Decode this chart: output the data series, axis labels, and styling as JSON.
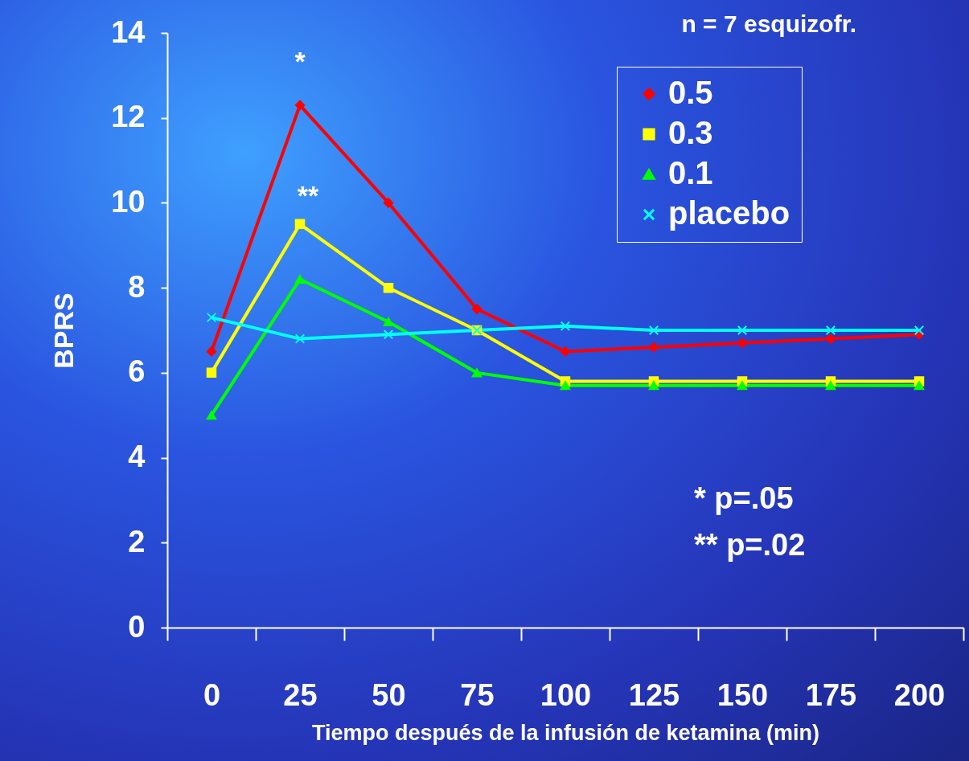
{
  "chart_data": {
    "type": "line",
    "xlabel": "Tiempo después de la infusión de ketamina (min)",
    "ylabel": "BPRS",
    "categories": [
      "0",
      "25",
      "50",
      "75",
      "100",
      "125",
      "150",
      "175",
      "200"
    ],
    "series": [
      {
        "name": "0.5",
        "color": "#ff0000",
        "marker": "diamond",
        "values": [
          6.5,
          12.3,
          10.0,
          7.5,
          6.5,
          6.6,
          6.7,
          6.8,
          6.9
        ]
      },
      {
        "name": "0.3",
        "color": "#ffff00",
        "marker": "square",
        "values": [
          6.0,
          9.5,
          8.0,
          7.0,
          5.8,
          5.8,
          5.8,
          5.8,
          5.8
        ]
      },
      {
        "name": "0.1",
        "color": "#00ff00",
        "marker": "triangle",
        "values": [
          5.0,
          8.2,
          7.2,
          6.0,
          5.7,
          5.7,
          5.7,
          5.7,
          5.7
        ]
      },
      {
        "name": "placebo",
        "color": "#00ffff",
        "marker": "cross",
        "values": [
          7.3,
          6.8,
          6.9,
          7.0,
          7.1,
          7.0,
          7.0,
          7.0,
          7.0
        ]
      }
    ],
    "ylim": [
      0,
      14
    ],
    "yticks": [
      0,
      2,
      4,
      6,
      8,
      10,
      12,
      14
    ],
    "grid": false,
    "legend": "top right",
    "annotations": [
      "*",
      "**",
      "n = 7 esquizofr.",
      "* p=.05",
      "** p=.02"
    ]
  }
}
